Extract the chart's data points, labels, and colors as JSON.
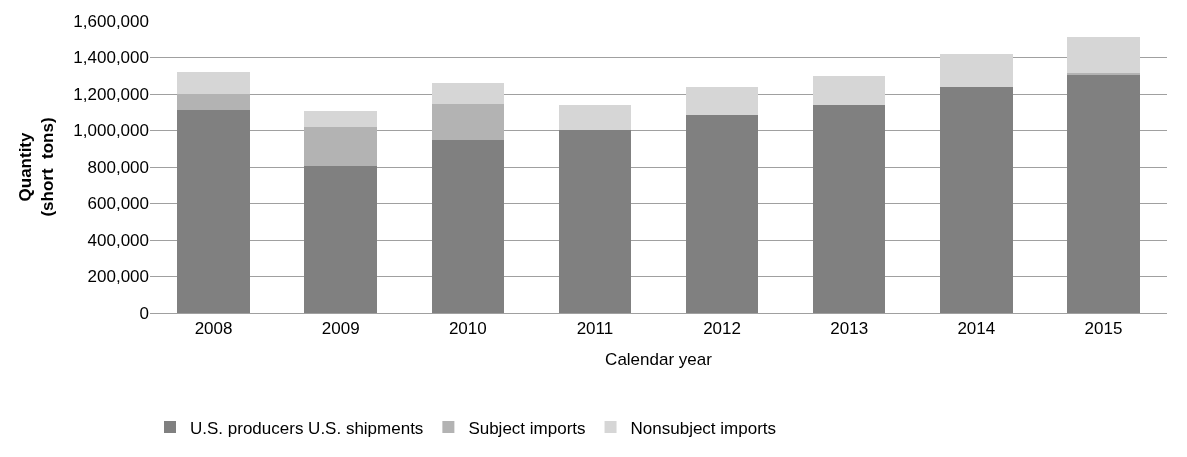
{
  "chart_data": {
    "type": "bar",
    "stacked": true,
    "xlabel": "Calendar year",
    "ylabel": "Quantity\n(short  tons)",
    "categories": [
      "2008",
      "2009",
      "2010",
      "2011",
      "2012",
      "2013",
      "2014",
      "2015"
    ],
    "series": [
      {
        "name": "U.S. producers U.S. shipments",
        "color": "#808080",
        "values": [
          1110000,
          807000,
          946000,
          1003000,
          1084000,
          1138000,
          1236000,
          1308000
        ]
      },
      {
        "name": "Subject imports",
        "color": "#b3b3b3",
        "values": [
          88000,
          213000,
          199000,
          null,
          null,
          null,
          null,
          5000
        ]
      },
      {
        "name": "Nonsubject imports",
        "color": "#d6d6d6",
        "values": [
          123000,
          89000,
          115000,
          136000,
          152000,
          160000,
          183000,
          200000
        ]
      }
    ],
    "ylim": [
      0,
      1600000
    ],
    "yticks": [
      {
        "value": 0,
        "label": "0"
      },
      {
        "value": 200000,
        "label": "200,000"
      },
      {
        "value": 400000,
        "label": "400,000"
      },
      {
        "value": 600000,
        "label": "600,000"
      },
      {
        "value": 800000,
        "label": "800,000"
      },
      {
        "value": 1000000,
        "label": "1,000,000"
      },
      {
        "value": 1200000,
        "label": "1,200,000"
      },
      {
        "value": 1400000,
        "label": "1,400,000"
      },
      {
        "value": 1600000,
        "label": "1,600,000"
      }
    ],
    "grid": "y",
    "legend": "bottom"
  }
}
